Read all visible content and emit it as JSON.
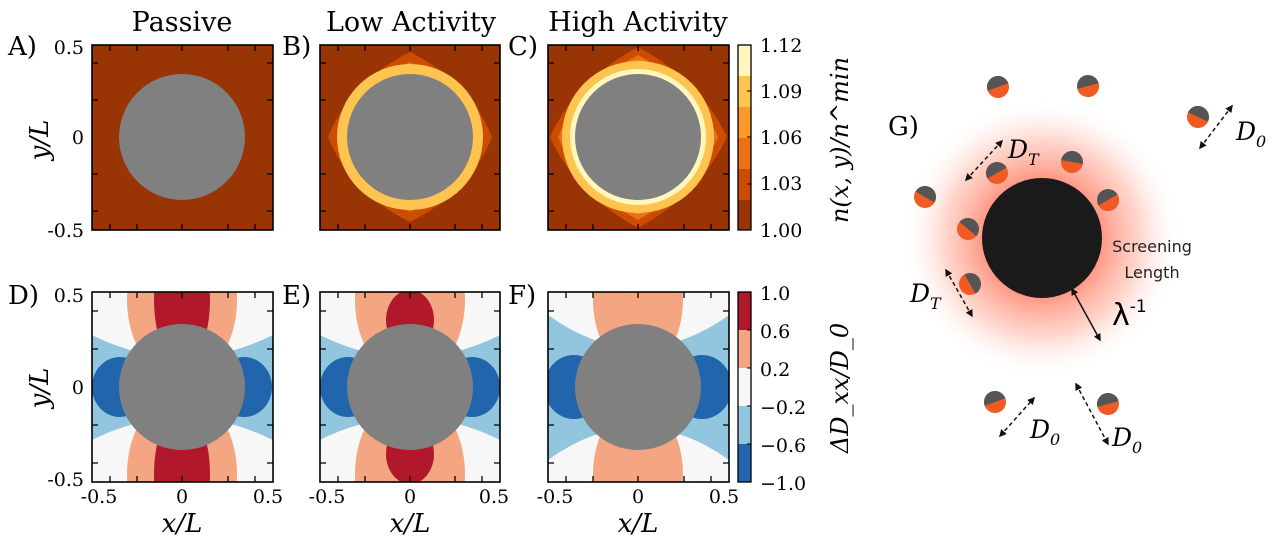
{
  "columns": [
    "Passive",
    "Low Activity",
    "High Activity"
  ],
  "panel_labels": [
    "A)",
    "B)",
    "C)",
    "D)",
    "E)",
    "F)",
    "G)"
  ],
  "axis_labels": {
    "y": "y/L",
    "x": "x/L"
  },
  "ticks": {
    "y_top": [
      "0.5",
      "0",
      "-0.5"
    ],
    "y_bottom": [
      "0.5",
      "0",
      "-0.5"
    ],
    "x": [
      "-0.5",
      "0",
      "0.5"
    ]
  },
  "colorbar_density": {
    "label": "n(x, y)/n^min",
    "ticks": [
      "1.12",
      "1.09",
      "1.06",
      "1.03",
      "1.00"
    ],
    "colors": [
      "#fff7bc",
      "#fec44f",
      "#fb9a29",
      "#ec7014",
      "#cc4c02",
      "#993404"
    ]
  },
  "colorbar_diffusion": {
    "label": "ΔD_xx/D_0",
    "ticks": [
      "1.0",
      "0.6",
      "0.2",
      "−0.2",
      "−0.6",
      "−1.0"
    ],
    "colors": [
      "#b2182b",
      "#f4a582",
      "#f7f7f7",
      "#92c5de",
      "#2166ac"
    ]
  },
  "colors": {
    "inclusion": "#808080",
    "tracer_orange": "#f05a23",
    "tracer_dark": "#555555",
    "glow": "#ff5a3c"
  },
  "schematic": {
    "labels": {
      "d0": "D",
      "d0_sub": "0",
      "dt": "D",
      "dt_sub": "T",
      "screening_line1": "Screening",
      "screening_line2": "Length",
      "lambda": "λ",
      "lambda_sup": "-1"
    }
  }
}
